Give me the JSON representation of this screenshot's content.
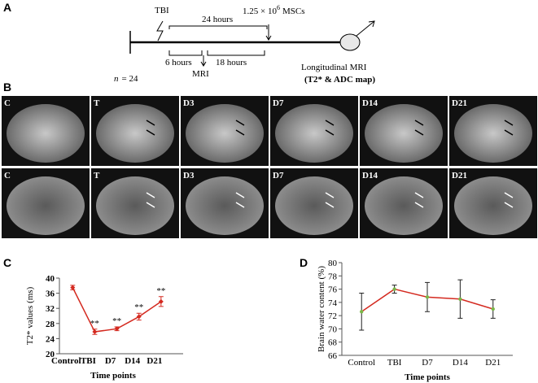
{
  "panels": [
    "A",
    "B",
    "C",
    "D"
  ],
  "timeline": {
    "injury": "TBI",
    "interval_long": "24 hours",
    "msc_dose": "1.25 × 10",
    "msc_exponent": "6",
    "msc_label": "MSCs",
    "interval_a": "6 hours",
    "interval_b": "18 hours",
    "scan": "MRI",
    "n_symbol": "n",
    "n_value": "= 24",
    "followup": "Longitudinal MRI",
    "followup_maps": "(T2* & ADC map)"
  },
  "mri": {
    "row_t2": [
      "C",
      "T",
      "D3",
      "D7",
      "D14",
      "D21"
    ],
    "row_adc": [
      "C",
      "T",
      "D3",
      "D7",
      "D14",
      "D21"
    ]
  },
  "chart_data": [
    {
      "type": "line",
      "xlabel": "Time points",
      "ylabel": "T2* values (ms)",
      "categories": [
        "Control",
        "TBI",
        "D7",
        "D14",
        "D21"
      ],
      "series": [
        {
          "color": "#d42a20",
          "marker_color": "#d42a20",
          "error_color": "#d42a20",
          "values": [
            37.5,
            25.8,
            26.6,
            29.8,
            33.8
          ],
          "errors": [
            0.6,
            0.7,
            0.5,
            0.9,
            1.3
          ]
        }
      ],
      "significance": [
        null,
        "**",
        "**",
        "**",
        "**"
      ],
      "ylim": [
        20,
        40
      ],
      "yticks": [
        20,
        24,
        28,
        32,
        36,
        40
      ]
    },
    {
      "type": "line",
      "xlabel": "Time points",
      "ylabel": "Brain water content (%)",
      "categories": [
        "Control",
        "TBI",
        "D7",
        "D14",
        "D21"
      ],
      "series": [
        {
          "color": "#d42a20",
          "marker_color": "#7ab648",
          "error_color": "#222222",
          "values": [
            72.6,
            76.0,
            74.8,
            74.5,
            73.0
          ],
          "errors": [
            2.8,
            0.6,
            2.2,
            2.9,
            1.4
          ]
        }
      ],
      "significance": [
        null,
        null,
        null,
        null,
        null
      ],
      "ylim": [
        66,
        80
      ],
      "yticks": [
        66,
        68,
        70,
        72,
        74,
        76,
        78,
        80
      ]
    }
  ]
}
